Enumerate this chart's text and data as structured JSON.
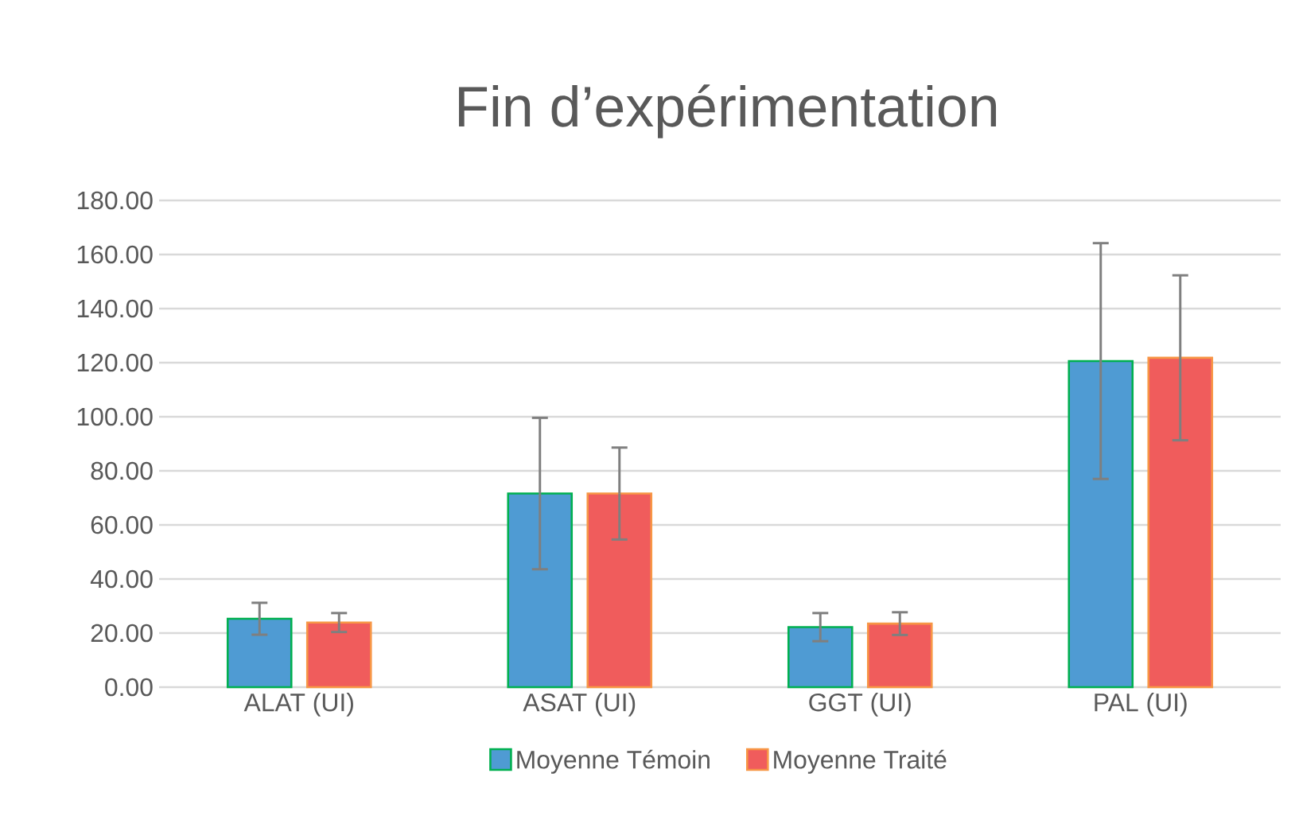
{
  "chart_data": {
    "type": "bar",
    "title": "Fin d’expérimentation",
    "categories": [
      "ALAT (UI)",
      "ASAT (UI)",
      "GGT (UI)",
      "PAL (UI)"
    ],
    "series": [
      {
        "name": "Moyenne Témoin",
        "color": "#4f9bd3",
        "values": [
          25.3,
          71.6,
          22.2,
          120.6
        ],
        "errors": [
          5.9,
          28,
          5.2,
          43.6
        ]
      },
      {
        "name": "Moyenne Traité",
        "color": "#f05c5c",
        "values": [
          23.9,
          71.6,
          23.5,
          121.8
        ],
        "errors": [
          3.5,
          17,
          4.2,
          30.5
        ]
      }
    ],
    "ylim": [
      0,
      180
    ],
    "yticks": [
      {
        "value": 0,
        "label": "0.00"
      },
      {
        "value": 20,
        "label": "20.00"
      },
      {
        "value": 40,
        "label": "40.00"
      },
      {
        "value": 60,
        "label": "60.00"
      },
      {
        "value": 80,
        "label": "80.00"
      },
      {
        "value": 100,
        "label": "100.00"
      },
      {
        "value": 120,
        "label": "120.00"
      },
      {
        "value": 140,
        "label": "140.00"
      },
      {
        "value": 160,
        "label": "160.00"
      },
      {
        "value": 180,
        "label": "180.00"
      }
    ],
    "grid": "y",
    "legend": "bottom"
  }
}
